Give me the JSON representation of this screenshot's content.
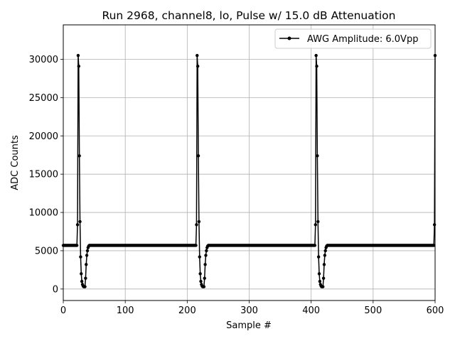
{
  "chart_data": {
    "type": "line",
    "title": "Run 2968, channel8, lo, Pulse w/ 15.0 dB Attenuation",
    "xlabel": "Sample #",
    "ylabel": "ADC Counts",
    "xlim": [
      0,
      600
    ],
    "ylim": [
      -1500,
      34500
    ],
    "xticks": [
      0,
      100,
      200,
      300,
      400,
      500,
      600
    ],
    "yticks": [
      0,
      5000,
      10000,
      15000,
      20000,
      25000,
      30000
    ],
    "grid": true,
    "legend_position": "top-right",
    "baseline": 5700,
    "series": [
      {
        "name": "AWG Amplitude: 6.0Vpp",
        "color": "#000000",
        "marker": "circle",
        "x_start": 0,
        "x_end": 600,
        "pulse_starts": [
          23,
          215,
          407,
          599
        ],
        "pulse_shape": [
          8400,
          30500,
          29100,
          17400,
          8800,
          4200,
          2000,
          1000,
          600,
          400,
          300,
          300,
          300,
          1400,
          3200,
          4400,
          5000,
          5400,
          5600
        ]
      }
    ]
  }
}
